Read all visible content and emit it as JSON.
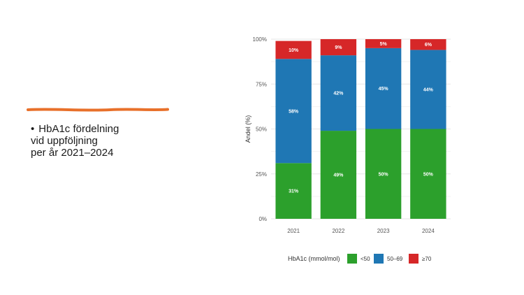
{
  "slide": {
    "bullet_lines": [
      "HbA1c fördelning",
      "vid uppföljning",
      "per år 2021–2024"
    ],
    "bullet_symbol": "•",
    "accent_color": "#e8702a"
  },
  "chart_data": {
    "type": "bar",
    "stacked": true,
    "categories": [
      "2021",
      "2022",
      "2023",
      "2024"
    ],
    "series": [
      {
        "name": "<50",
        "values": [
          31,
          49,
          50,
          50
        ],
        "color": "#2ca02c"
      },
      {
        "name": "50–69",
        "values": [
          58,
          42,
          45,
          44
        ],
        "color": "#1f77b4"
      },
      {
        "name": "≥70",
        "values": [
          10,
          9,
          5,
          6
        ],
        "color": "#d62728"
      }
    ],
    "data_labels": [
      [
        "31%",
        "49%",
        "50%",
        "50%"
      ],
      [
        "58%",
        "42%",
        "45%",
        "44%"
      ],
      [
        "10%",
        "9%",
        "5%",
        "6%"
      ]
    ],
    "ylabel": "Andel (%)",
    "xlabel": "",
    "ylim": [
      0,
      100
    ],
    "yticks": [
      0,
      25,
      50,
      75,
      100
    ],
    "ytick_labels": [
      "0%",
      "25%",
      "50%",
      "75%",
      "100%"
    ],
    "legend_title": "HbA1c (mmol/mol)",
    "legend_position": "bottom",
    "grid": true
  }
}
